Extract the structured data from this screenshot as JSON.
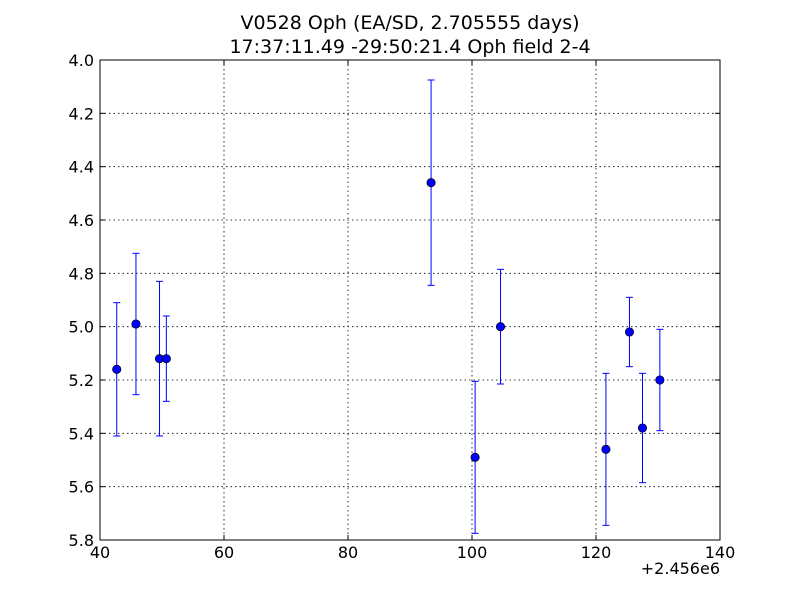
{
  "chart_data": {
    "type": "scatter",
    "title_line1": "V0528 Oph (EA/SD, 2.705555 days)",
    "title_line2": "17:37:11.49 -29:50:21.4 Oph field 2-4",
    "xlabel": "",
    "ylabel": "",
    "x_offset_label": "+2.456e6",
    "xlim": [
      40,
      140
    ],
    "ylim": [
      4.0,
      5.8
    ],
    "y_inverted": true,
    "grid": true,
    "x_ticks": [
      40,
      60,
      80,
      100,
      120,
      140
    ],
    "x_tick_labels": [
      "40",
      "60",
      "80",
      "100",
      "120",
      "140"
    ],
    "y_ticks": [
      4.0,
      4.2,
      4.4,
      4.6,
      4.8,
      5.0,
      5.2,
      5.4,
      5.6,
      5.8
    ],
    "y_tick_labels": [
      "4.0",
      "4.2",
      "4.4",
      "4.6",
      "4.8",
      "5.0",
      "5.2",
      "5.4",
      "5.6",
      "5.8"
    ],
    "marker_color": "#0000ff",
    "points": [
      {
        "x": 42.7,
        "y": 5.16,
        "err": 0.25
      },
      {
        "x": 45.8,
        "y": 4.99,
        "err": 0.265
      },
      {
        "x": 49.6,
        "y": 5.12,
        "err": 0.29
      },
      {
        "x": 50.7,
        "y": 5.12,
        "err": 0.16
      },
      {
        "x": 93.4,
        "y": 4.46,
        "err": 0.385
      },
      {
        "x": 100.5,
        "y": 5.49,
        "err": 0.285
      },
      {
        "x": 104.6,
        "y": 5.0,
        "err": 0.215
      },
      {
        "x": 121.6,
        "y": 5.46,
        "err": 0.285
      },
      {
        "x": 125.4,
        "y": 5.02,
        "err": 0.13
      },
      {
        "x": 127.5,
        "y": 5.38,
        "err": 0.205
      },
      {
        "x": 130.3,
        "y": 5.2,
        "err": 0.19
      }
    ]
  }
}
